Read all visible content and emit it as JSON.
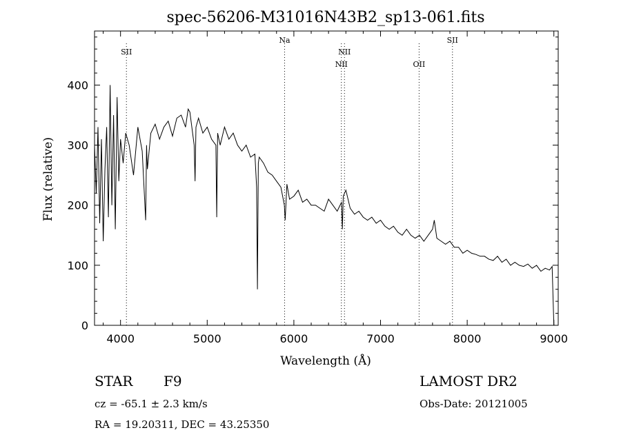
{
  "chart_data": {
    "type": "line",
    "title": "spec-56206-M31016N43B2_sp13-061.fits",
    "xlabel": "Wavelength (Å)",
    "ylabel": "Flux (relative)",
    "xlim": [
      3700,
      9050
    ],
    "ylim": [
      0,
      490
    ],
    "x_ticks": [
      4000,
      5000,
      6000,
      7000,
      8000,
      9000
    ],
    "x_tick_labels": [
      "4000",
      "5000",
      "6000",
      "7000",
      "8000",
      "9000"
    ],
    "y_ticks": [
      0,
      100,
      200,
      300,
      400
    ],
    "y_tick_labels": [
      "0",
      "100",
      "200",
      "300",
      "400"
    ],
    "grid": false,
    "line_color": "#000000",
    "lines": [
      {
        "label": "SII",
        "wavelength": 4068,
        "row": 0
      },
      {
        "label": "Na",
        "wavelength": 5893,
        "row": -1
      },
      {
        "label": "NII",
        "wavelength": 6548,
        "row": 1
      },
      {
        "label": "NII",
        "wavelength": 6584,
        "row": 0
      },
      {
        "label": "OII",
        "wavelength": 7445,
        "row": 1
      },
      {
        "label": "SII",
        "wavelength": 7830,
        "row": -1
      }
    ],
    "series": [
      {
        "x": [
          3700,
          3720,
          3740,
          3760,
          3780,
          3800,
          3820,
          3840,
          3860,
          3880,
          3900,
          3920,
          3940,
          3960,
          3980,
          4000,
          4030,
          4060,
          4100,
          4150,
          4200,
          4250,
          4290,
          4300,
          4310,
          4350,
          4400,
          4450,
          4500,
          4550,
          4600,
          4650,
          4700,
          4750,
          4780,
          4800,
          4850,
          4860,
          4870,
          4900,
          4950,
          5000,
          5050,
          5100,
          5110,
          5120,
          5150,
          5200,
          5250,
          5300,
          5350,
          5400,
          5450,
          5500,
          5550,
          5570,
          5580,
          5590,
          5600,
          5650,
          5700,
          5750,
          5800,
          5850,
          5890,
          5900,
          5920,
          5950,
          6000,
          6050,
          6100,
          6150,
          6200,
          6250,
          6300,
          6350,
          6400,
          6450,
          6500,
          6550,
          6560,
          6570,
          6600,
          6650,
          6700,
          6750,
          6800,
          6850,
          6900,
          6950,
          7000,
          7050,
          7100,
          7150,
          7200,
          7250,
          7300,
          7350,
          7400,
          7450,
          7500,
          7550,
          7600,
          7620,
          7650,
          7700,
          7750,
          7800,
          7850,
          7900,
          7950,
          8000,
          8050,
          8100,
          8150,
          8200,
          8250,
          8300,
          8350,
          8400,
          8450,
          8500,
          8550,
          8600,
          8650,
          8700,
          8750,
          8800,
          8850,
          8900,
          8950,
          8980,
          9000
        ],
        "y": [
          300,
          220,
          330,
          170,
          310,
          140,
          260,
          330,
          180,
          400,
          200,
          350,
          160,
          380,
          240,
          310,
          270,
          320,
          300,
          250,
          330,
          290,
          175,
          300,
          260,
          320,
          335,
          310,
          330,
          340,
          315,
          345,
          350,
          330,
          360,
          355,
          300,
          240,
          330,
          345,
          320,
          330,
          310,
          300,
          180,
          320,
          300,
          330,
          310,
          320,
          300,
          290,
          300,
          280,
          285,
          230,
          60,
          270,
          280,
          270,
          255,
          250,
          240,
          230,
          200,
          175,
          235,
          210,
          215,
          225,
          205,
          210,
          200,
          200,
          195,
          190,
          210,
          200,
          190,
          205,
          160,
          215,
          225,
          195,
          185,
          190,
          180,
          175,
          180,
          170,
          175,
          165,
          160,
          165,
          155,
          150,
          160,
          150,
          145,
          150,
          140,
          150,
          160,
          175,
          145,
          140,
          135,
          140,
          130,
          130,
          120,
          125,
          120,
          118,
          115,
          115,
          110,
          108,
          115,
          105,
          110,
          100,
          105,
          100,
          98,
          102,
          95,
          100,
          90,
          95,
          92,
          98,
          0
        ]
      }
    ],
    "footer": {
      "class": "STAR",
      "subclass": "F9",
      "cz": "cz = -65.1 ± 2.3 km/s",
      "coords": "RA =  19.20311, DEC =  43.25350",
      "survey": "LAMOST DR2",
      "obs_date": "Obs-Date: 20121005"
    }
  }
}
